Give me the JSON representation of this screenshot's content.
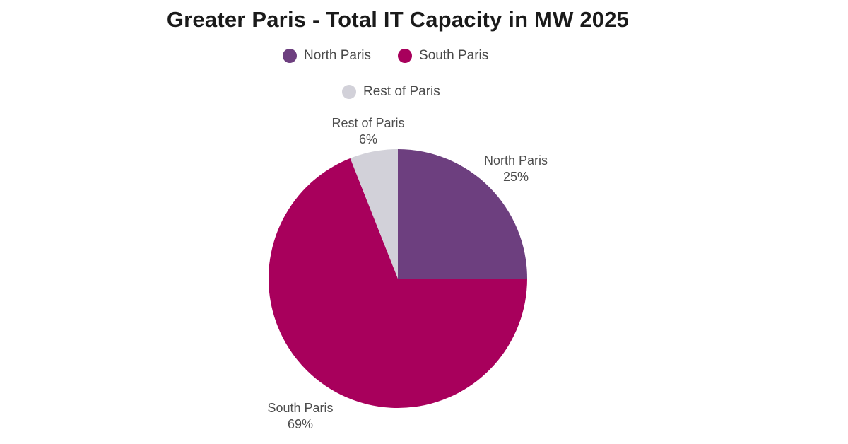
{
  "chart_data": {
    "type": "pie",
    "title": "Greater Paris - Total IT Capacity in MW 2025",
    "slices": [
      {
        "name": "North Paris",
        "value": 25,
        "label": "25%",
        "color": "#6d3f7f"
      },
      {
        "name": "South Paris",
        "value": 69,
        "label": "69%",
        "color": "#a8005c"
      },
      {
        "name": "Rest of Paris",
        "value": 6,
        "label": "6%",
        "color": "#d2d1d9"
      }
    ],
    "legend": {
      "placement": "top",
      "items": [
        "North Paris",
        "South Paris",
        "Rest of Paris"
      ]
    }
  }
}
